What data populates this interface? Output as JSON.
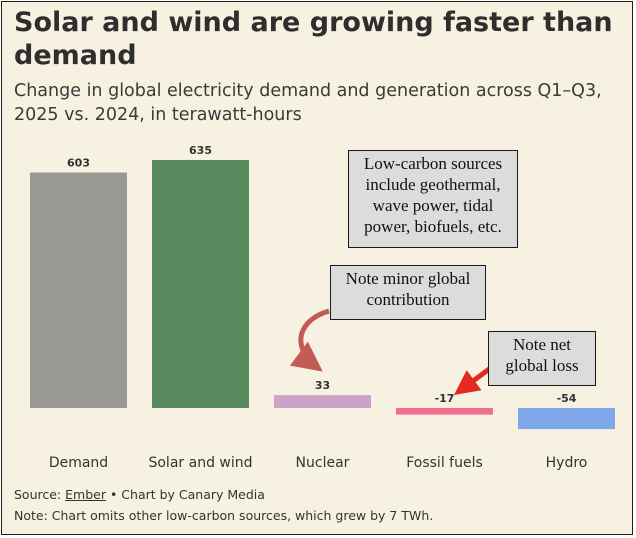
{
  "title": "Solar and wind are growing faster than demand",
  "subtitle": "Change in global electricity demand and generation across Q1–Q3, 2025 vs. 2024, in terawatt-hours",
  "chart_data": {
    "type": "bar",
    "title": "Solar and wind are growing faster than demand",
    "subtitle": "Change in global electricity demand and generation across Q1–Q3, 2025 vs. 2024, in terawatt-hours",
    "categories": [
      "Demand",
      "Solar and wind",
      "Nuclear",
      "Fossil fuels",
      "Hydro"
    ],
    "values": [
      603,
      635,
      33,
      -17,
      -54
    ],
    "value_labels": [
      "603",
      "635",
      "33",
      "-17",
      "-54"
    ],
    "colors": [
      "#9a9893",
      "#578a5d",
      "#cea2c8",
      "#ef6e92",
      "#7fa6e6"
    ],
    "xlabel": "",
    "ylabel": "",
    "grid": false,
    "legend": "none"
  },
  "annotations": {
    "low_carbon": "Low-carbon sources include geothermal, wave power, tidal power, biofuels, etc.",
    "nuclear_note": "Note minor global contribution",
    "fossil_note": "Note net global loss"
  },
  "annotation_colors": {
    "nuclear_arrow": "#c25a55",
    "fossil_arrow": "#e22a20"
  },
  "footer": {
    "source_prefix": "Source: ",
    "source_link": "Ember",
    "source_suffix": " • Chart by Canary Media",
    "note": "Note: Chart omits other low-carbon sources, which grew by 7 TWh."
  }
}
